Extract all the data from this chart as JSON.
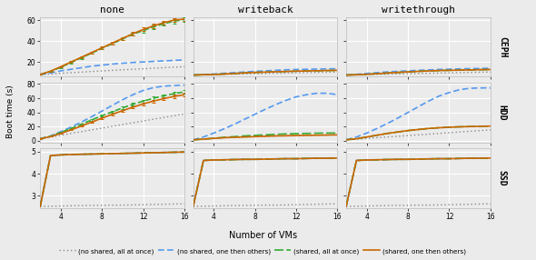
{
  "col_labels": [
    "none",
    "writeback",
    "writethrough"
  ],
  "row_labels": [
    "CEPH",
    "HDD",
    "SSD"
  ],
  "x": [
    2,
    3,
    4,
    5,
    6,
    7,
    8,
    9,
    10,
    11,
    12,
    13,
    14,
    15,
    16
  ],
  "line_styles": [
    {
      "color": "#888888",
      "linestyle": "dotted",
      "linewidth": 1.0,
      "dashes": [
        1,
        2
      ],
      "label": "(no shared, all at once)"
    },
    {
      "color": "#5599ee",
      "linestyle": "dashed",
      "linewidth": 1.2,
      "dashes": [
        4,
        2
      ],
      "label": "(no shared, one then others)"
    },
    {
      "color": "#33aa33",
      "linestyle": "dashed",
      "linewidth": 1.2,
      "dashes": [
        6,
        2
      ],
      "label": "(shared, all at once)"
    },
    {
      "color": "#cc6600",
      "linestyle": "solid",
      "linewidth": 1.2,
      "dashes": [],
      "label": "(shared, one then others)"
    }
  ],
  "data": {
    "CEPH_none": [
      [
        8.0,
        8.5,
        9.2,
        9.8,
        10.3,
        10.9,
        11.4,
        12.0,
        12.5,
        13.0,
        13.5,
        14.0,
        14.5,
        15.0,
        15.5
      ],
      [
        8.0,
        9.5,
        11.5,
        13.0,
        14.5,
        16.0,
        17.0,
        18.0,
        18.8,
        19.5,
        20.0,
        20.5,
        21.0,
        21.5,
        22.0
      ],
      [
        8.0,
        11.0,
        15.0,
        19.5,
        24.0,
        28.5,
        33.0,
        37.5,
        42.0,
        46.5,
        50.0,
        53.5,
        56.5,
        59.0,
        60.5
      ],
      [
        8.0,
        11.2,
        15.5,
        20.0,
        24.5,
        29.0,
        33.5,
        38.0,
        42.5,
        47.0,
        51.0,
        54.5,
        57.5,
        60.0,
        61.0
      ]
    ],
    "CEPH_writeback": [
      [
        7.5,
        7.8,
        8.0,
        8.2,
        8.4,
        8.6,
        8.8,
        9.0,
        9.2,
        9.4,
        9.6,
        9.8,
        10.0,
        10.2,
        10.4
      ],
      [
        7.5,
        8.0,
        8.5,
        9.2,
        9.8,
        10.4,
        11.0,
        11.5,
        12.0,
        12.5,
        12.8,
        13.0,
        13.2,
        13.4,
        13.5
      ],
      [
        7.5,
        7.8,
        8.0,
        8.5,
        9.0,
        9.5,
        10.0,
        10.3,
        10.6,
        10.9,
        11.2,
        11.4,
        11.6,
        11.8,
        12.0
      ],
      [
        7.5,
        7.8,
        8.0,
        8.5,
        9.0,
        9.5,
        10.0,
        10.3,
        10.6,
        10.9,
        11.2,
        11.4,
        11.6,
        11.8,
        12.0
      ]
    ],
    "CEPH_writethrough": [
      [
        7.5,
        7.8,
        8.0,
        8.2,
        8.4,
        8.6,
        8.8,
        9.0,
        9.2,
        9.4,
        9.6,
        9.8,
        10.0,
        10.2,
        10.4
      ],
      [
        7.5,
        8.2,
        9.0,
        9.8,
        10.5,
        11.0,
        11.5,
        12.0,
        12.4,
        12.8,
        13.1,
        13.4,
        13.6,
        13.8,
        14.0
      ],
      [
        7.5,
        7.8,
        8.2,
        8.8,
        9.4,
        10.0,
        10.5,
        11.0,
        11.4,
        11.8,
        12.0,
        12.2,
        12.4,
        12.6,
        12.8
      ],
      [
        7.5,
        7.8,
        8.2,
        8.8,
        9.4,
        10.0,
        10.5,
        11.0,
        11.4,
        11.8,
        12.0,
        12.2,
        12.4,
        12.6,
        12.8
      ]
    ],
    "HDD_none": [
      [
        3.0,
        5.5,
        8.0,
        10.5,
        13.0,
        15.5,
        18.0,
        20.5,
        23.0,
        25.5,
        28.0,
        30.5,
        33.0,
        35.5,
        38.0
      ],
      [
        3.0,
        7.0,
        13.0,
        19.5,
        26.5,
        34.0,
        42.0,
        50.0,
        58.0,
        65.0,
        71.0,
        75.0,
        77.0,
        78.0,
        78.5
      ],
      [
        3.0,
        6.5,
        12.0,
        17.5,
        23.5,
        29.5,
        35.5,
        41.0,
        46.5,
        51.5,
        56.0,
        60.0,
        63.5,
        66.5,
        69.0
      ],
      [
        3.0,
        6.0,
        10.5,
        15.5,
        21.0,
        26.5,
        32.0,
        37.5,
        42.5,
        47.5,
        52.0,
        56.0,
        59.5,
        62.5,
        65.0
      ]
    ],
    "HDD_writeback": [
      [
        1.5,
        2.5,
        3.5,
        4.5,
        5.0,
        5.5,
        6.0,
        6.5,
        7.0,
        7.2,
        7.5,
        7.8,
        8.0,
        8.2,
        8.5
      ],
      [
        1.5,
        5.5,
        11.0,
        17.0,
        23.5,
        30.5,
        37.5,
        44.5,
        51.0,
        57.0,
        62.0,
        65.0,
        67.0,
        67.0,
        65.0
      ],
      [
        1.5,
        2.5,
        3.8,
        5.0,
        6.0,
        7.0,
        7.8,
        8.5,
        9.2,
        9.8,
        10.2,
        10.5,
        10.8,
        11.0,
        11.0
      ],
      [
        1.5,
        2.5,
        3.5,
        4.5,
        5.0,
        5.5,
        6.0,
        6.5,
        7.0,
        7.2,
        7.5,
        7.8,
        8.0,
        8.2,
        8.5
      ]
    ],
    "HDD_writethrough": [
      [
        1.5,
        2.5,
        3.5,
        4.5,
        5.5,
        6.5,
        7.5,
        8.5,
        9.5,
        10.5,
        11.5,
        12.5,
        13.5,
        14.5,
        15.5
      ],
      [
        1.5,
        5.5,
        11.0,
        17.5,
        24.5,
        32.0,
        40.0,
        48.0,
        56.0,
        63.0,
        68.0,
        72.0,
        74.0,
        74.5,
        74.5
      ],
      [
        1.5,
        3.0,
        5.5,
        8.0,
        10.5,
        12.5,
        14.5,
        16.0,
        17.5,
        18.5,
        19.2,
        19.8,
        20.2,
        20.5,
        20.8
      ],
      [
        1.5,
        3.0,
        5.5,
        8.0,
        10.5,
        12.5,
        14.5,
        16.0,
        17.5,
        18.5,
        19.2,
        19.8,
        20.2,
        20.5,
        20.8
      ]
    ],
    "SSD_none": [
      [
        2.52,
        2.53,
        2.54,
        2.55,
        2.56,
        2.57,
        2.57,
        2.58,
        2.58,
        2.59,
        2.6,
        2.61,
        2.62,
        2.63,
        2.64
      ],
      [
        2.52,
        4.82,
        4.85,
        4.87,
        4.88,
        4.89,
        4.9,
        4.91,
        4.92,
        4.93,
        4.94,
        4.95,
        4.96,
        4.97,
        4.98
      ],
      [
        2.52,
        4.82,
        4.85,
        4.87,
        4.88,
        4.89,
        4.9,
        4.91,
        4.92,
        4.93,
        4.94,
        4.95,
        4.96,
        4.97,
        4.98
      ],
      [
        2.52,
        4.82,
        4.85,
        4.87,
        4.88,
        4.89,
        4.9,
        4.91,
        4.92,
        4.93,
        4.94,
        4.95,
        4.96,
        4.97,
        4.98
      ]
    ],
    "SSD_writeback": [
      [
        2.52,
        2.53,
        2.54,
        2.55,
        2.56,
        2.57,
        2.57,
        2.58,
        2.58,
        2.59,
        2.6,
        2.61,
        2.62,
        2.63,
        2.64
      ],
      [
        2.52,
        4.6,
        4.62,
        4.63,
        4.64,
        4.65,
        4.65,
        4.66,
        4.67,
        4.68,
        4.68,
        4.69,
        4.7,
        4.7,
        4.71
      ],
      [
        2.52,
        4.6,
        4.62,
        4.63,
        4.64,
        4.65,
        4.65,
        4.66,
        4.67,
        4.68,
        4.68,
        4.69,
        4.7,
        4.7,
        4.71
      ],
      [
        2.52,
        4.6,
        4.62,
        4.63,
        4.64,
        4.65,
        4.65,
        4.66,
        4.67,
        4.68,
        4.68,
        4.69,
        4.7,
        4.7,
        4.71
      ]
    ],
    "SSD_writethrough": [
      [
        2.52,
        2.53,
        2.54,
        2.55,
        2.56,
        2.57,
        2.57,
        2.58,
        2.58,
        2.59,
        2.6,
        2.61,
        2.62,
        2.63,
        2.64
      ],
      [
        2.52,
        4.6,
        4.62,
        4.63,
        4.64,
        4.65,
        4.65,
        4.66,
        4.67,
        4.68,
        4.68,
        4.69,
        4.7,
        4.7,
        4.71
      ],
      [
        2.52,
        4.6,
        4.62,
        4.63,
        4.64,
        4.65,
        4.65,
        4.66,
        4.67,
        4.68,
        4.68,
        4.69,
        4.7,
        4.7,
        4.71
      ],
      [
        2.52,
        4.6,
        4.62,
        4.63,
        4.64,
        4.65,
        4.65,
        4.66,
        4.67,
        4.68,
        4.68,
        4.69,
        4.7,
        4.7,
        4.71
      ]
    ]
  },
  "ylims": {
    "CEPH": [
      6,
      63
    ],
    "HDD": [
      -2,
      82
    ],
    "SSD": [
      2.45,
      5.15
    ]
  },
  "yticks": {
    "CEPH": [
      20,
      40,
      60
    ],
    "HDD": [
      0,
      20,
      40,
      60,
      80
    ],
    "SSD": [
      3,
      4,
      5
    ]
  },
  "errorbar_rows": [
    "CEPH_none",
    "HDD_none"
  ],
  "errorbar_lines": [
    2,
    3
  ],
  "background_color": "#ebebeb",
  "grid_color": "#ffffff",
  "ylabel": "Boot time (s)",
  "xlabel": "Number of VMs"
}
